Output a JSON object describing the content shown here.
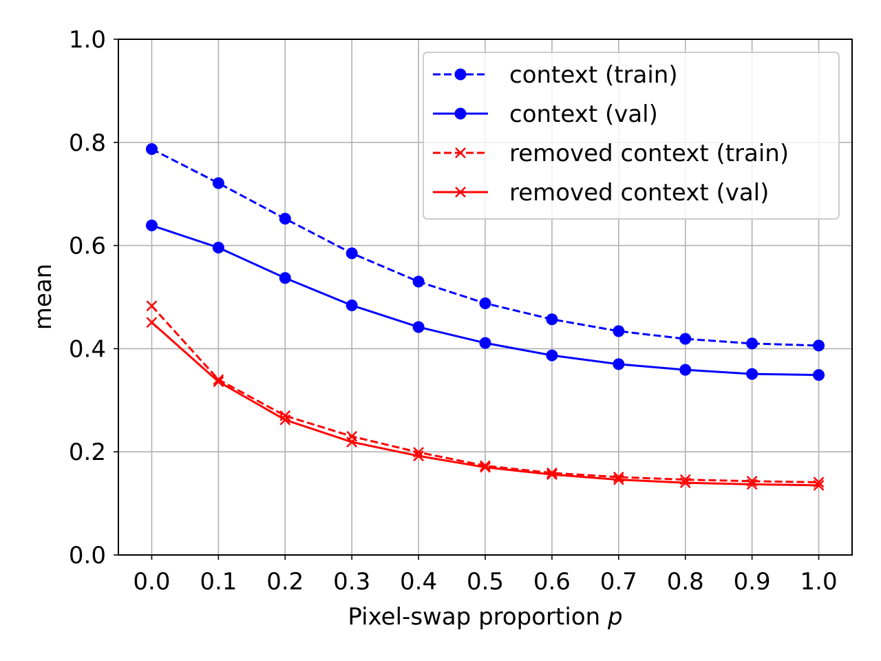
{
  "chart_data": {
    "type": "line",
    "title": "",
    "xlabel": "Pixel-swap proportion",
    "xlabel_var": "p",
    "ylabel": "mean",
    "x": [
      0.0,
      0.1,
      0.2,
      0.3,
      0.4,
      0.5,
      0.6,
      0.7,
      0.8,
      0.9,
      1.0
    ],
    "xtick_labels": [
      "0.0",
      "0.1",
      "0.2",
      "0.3",
      "0.4",
      "0.5",
      "0.6",
      "0.7",
      "0.8",
      "0.9",
      "1.0"
    ],
    "yticks": [
      0.0,
      0.2,
      0.4,
      0.6,
      0.8,
      1.0
    ],
    "ytick_labels": [
      "0.0",
      "0.2",
      "0.4",
      "0.6",
      "0.8",
      "1.0"
    ],
    "xlim": [
      -0.05,
      1.05
    ],
    "ylim": [
      0.0,
      1.0
    ],
    "grid": true,
    "legend_position": "top-right",
    "series": [
      {
        "name": "context (train)",
        "color": "#0000ff",
        "linestyle": "dashed",
        "marker": "circle",
        "values": [
          0.787,
          0.721,
          0.652,
          0.585,
          0.53,
          0.488,
          0.457,
          0.434,
          0.419,
          0.41,
          0.406
        ]
      },
      {
        "name": "context (val)",
        "color": "#0000ff",
        "linestyle": "solid",
        "marker": "circle",
        "values": [
          0.639,
          0.596,
          0.537,
          0.484,
          0.442,
          0.411,
          0.387,
          0.37,
          0.359,
          0.351,
          0.349
        ]
      },
      {
        "name": "removed context (train)",
        "color": "#ff0000",
        "linestyle": "dashed",
        "marker": "x",
        "values": [
          0.483,
          0.34,
          0.27,
          0.23,
          0.199,
          0.173,
          0.159,
          0.151,
          0.146,
          0.143,
          0.141
        ]
      },
      {
        "name": "removed context (val)",
        "color": "#ff0000",
        "linestyle": "solid",
        "marker": "x",
        "values": [
          0.451,
          0.336,
          0.262,
          0.219,
          0.192,
          0.17,
          0.156,
          0.146,
          0.14,
          0.137,
          0.135
        ]
      }
    ]
  }
}
